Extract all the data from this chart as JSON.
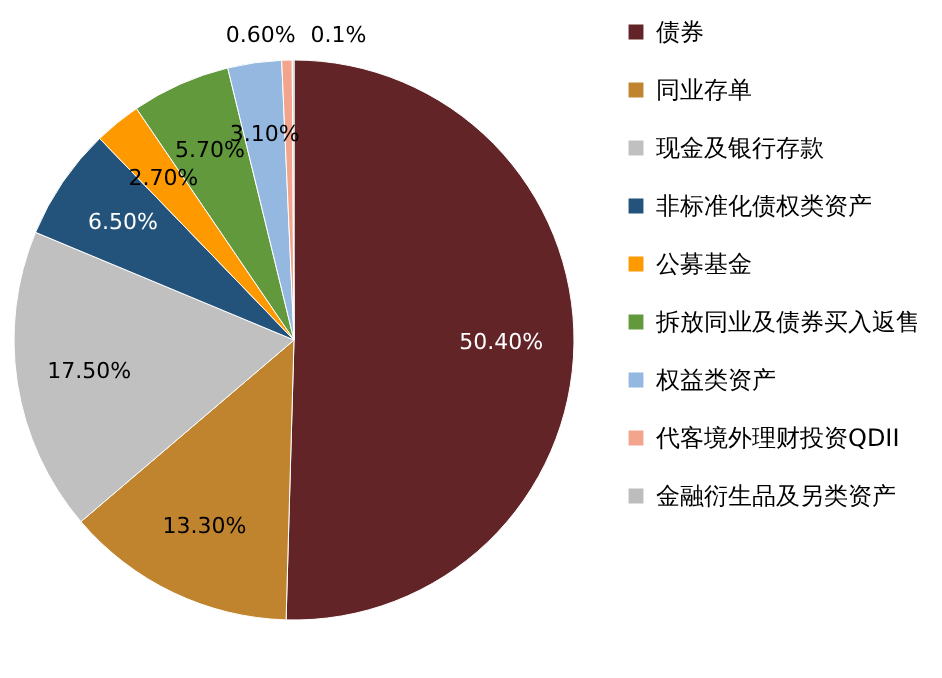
{
  "chart_data": {
    "type": "pie",
    "categories": [
      "债券",
      "同业存单",
      "现金及银行存款",
      "非标准化债权类资产",
      "公募基金",
      "拆放同业及债券买入返售",
      "权益类资产",
      "代客境外理财投资QDII",
      "金融衍生品及另类资产"
    ],
    "values": [
      50.4,
      13.3,
      17.5,
      6.5,
      2.7,
      5.7,
      3.1,
      0.6,
      0.1
    ],
    "value_labels": [
      "50.40%",
      "13.30%",
      "17.50%",
      "6.50%",
      "2.70%",
      "5.70%",
      "3.10%",
      "0.60%",
      "0.1%"
    ],
    "colors": [
      "#632427",
      "#c0842f",
      "#c0c0c0",
      "#23537a",
      "#ff9900",
      "#63993d",
      "#95b8e0",
      "#f2a58c",
      "#bdbdbd"
    ],
    "legend": "right"
  }
}
